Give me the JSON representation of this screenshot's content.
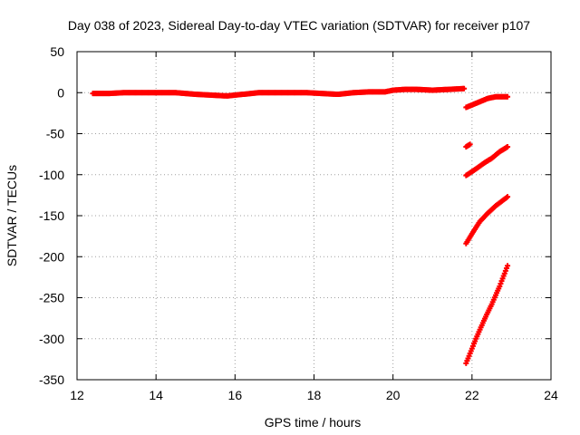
{
  "chart_data": {
    "type": "scatter",
    "title": "Day 038 of 2023, Sidereal Day-to-day VTEC variation (SDTVAR) for receiver p107",
    "xlabel": "GPS time / hours",
    "ylabel": "SDTVAR / TECUs",
    "xlim": [
      12,
      24
    ],
    "ylim": [
      -350,
      50
    ],
    "xticks": [
      12,
      14,
      16,
      18,
      20,
      22,
      24
    ],
    "yticks": [
      50,
      0,
      -50,
      -100,
      -150,
      -200,
      -250,
      -300,
      -350
    ],
    "grid": true,
    "marker_color": "#ff0000",
    "series": [
      {
        "x": [
          12.4,
          12.8,
          13.2,
          13.6,
          14.0,
          14.5,
          15.0,
          15.4,
          15.8,
          16.2,
          16.6,
          17.0,
          17.4,
          17.8,
          18.2,
          18.6,
          19.0,
          19.4,
          19.8,
          20.0,
          20.3,
          20.6,
          21.0,
          21.4,
          21.8
        ],
        "y": [
          -1,
          -1,
          0,
          0,
          0,
          0,
          -2,
          -3,
          -4,
          -2,
          0,
          0,
          0,
          0,
          -1,
          -2,
          0,
          1,
          1,
          3,
          4,
          4,
          3,
          4,
          5
        ]
      },
      {
        "x": [
          21.85,
          22.0,
          22.2,
          22.4,
          22.6,
          22.9
        ],
        "y": [
          -18,
          -15,
          -11,
          -7,
          -5,
          -5
        ]
      },
      {
        "x": [
          21.85,
          21.95
        ],
        "y": [
          -66,
          -63
        ]
      },
      {
        "x": [
          21.85,
          22.1,
          22.3,
          22.5,
          22.7,
          22.9
        ],
        "y": [
          -101,
          -93,
          -86,
          -80,
          -72,
          -66
        ]
      },
      {
        "x": [
          21.85,
          22.0,
          22.2,
          22.4,
          22.6,
          22.9
        ],
        "y": [
          -184,
          -172,
          -157,
          -147,
          -138,
          -127
        ]
      },
      {
        "x": [
          21.85,
          22.1,
          22.3,
          22.5,
          22.7,
          22.9
        ],
        "y": [
          -330,
          -300,
          -278,
          -258,
          -236,
          -211
        ]
      }
    ]
  }
}
